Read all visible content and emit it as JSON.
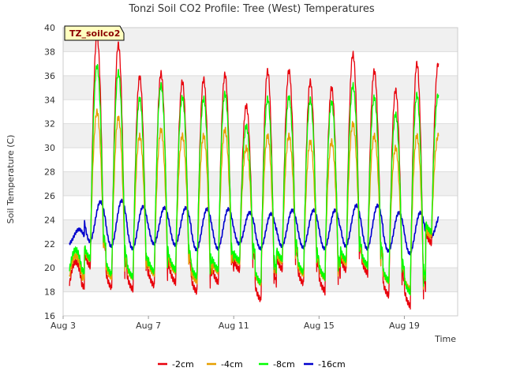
{
  "chart_data": {
    "type": "line",
    "title": "Tonzi Soil CO2 Profile: Tree (West) Temperatures",
    "xlabel": "Time",
    "ylabel": "Soil Temperature (C)",
    "badge": "TZ_soilco2",
    "ylim": [
      16,
      40
    ],
    "yticks": [
      16,
      18,
      20,
      22,
      24,
      26,
      28,
      30,
      32,
      34,
      36,
      38,
      40
    ],
    "xlim": [
      3,
      21.5
    ],
    "xticks": [
      {
        "value": 3,
        "label": "Aug 3"
      },
      {
        "value": 7,
        "label": "Aug 7"
      },
      {
        "value": 11,
        "label": "Aug 11"
      },
      {
        "value": 15,
        "label": "Aug 15"
      },
      {
        "value": 19,
        "label": "Aug 19"
      }
    ],
    "x_start": 3.3,
    "x_end": 20.6,
    "grid": true,
    "background_bands": true,
    "legend_position": "bottom",
    "days": [
      3,
      4,
      5,
      6,
      7,
      8,
      9,
      10,
      11,
      12,
      13,
      14,
      15,
      16,
      17,
      18,
      19,
      20
    ],
    "series": [
      {
        "name": "-2cm",
        "color": "#e8000b",
        "min": [
          18.2,
          19.8,
          18.0,
          17.9,
          18.2,
          18.5,
          17.7,
          18.5,
          19.6,
          17.0,
          19.6,
          18.4,
          17.8,
          19.5,
          19.3,
          17.4,
          16.5,
          21.8
        ],
        "max": [
          20.5,
          39.3,
          38.6,
          35.9,
          36.2,
          35.5,
          35.7,
          36.1,
          33.5,
          36.4,
          36.4,
          35.5,
          35.0,
          37.8,
          36.4,
          34.8,
          37.0,
          37.0
        ]
      },
      {
        "name": "-4cm",
        "color": "#e69f00",
        "min": [
          19.0,
          20.5,
          19.0,
          19.0,
          19.3,
          19.5,
          18.7,
          19.5,
          20.3,
          18.5,
          20.3,
          19.3,
          19.0,
          20.2,
          20.0,
          18.7,
          18.0,
          22.5
        ],
        "max": [
          21.0,
          33.0,
          32.5,
          31.0,
          31.5,
          31.0,
          31.0,
          31.5,
          30.0,
          31.0,
          31.0,
          30.5,
          30.5,
          32.0,
          31.0,
          30.0,
          31.0,
          31.0
        ]
      },
      {
        "name": "-8cm",
        "color": "#00ff00",
        "min": [
          19.5,
          20.5,
          19.2,
          19.0,
          19.4,
          19.6,
          19.0,
          19.6,
          20.4,
          18.5,
          20.5,
          19.4,
          19.0,
          20.4,
          20.0,
          18.7,
          17.7,
          22.8
        ],
        "max": [
          21.5,
          36.8,
          36.3,
          34.1,
          35.2,
          34.2,
          34.1,
          34.5,
          31.8,
          34.1,
          34.2,
          34.0,
          33.8,
          35.2,
          34.2,
          32.8,
          34.4,
          34.4
        ]
      },
      {
        "name": "-16cm",
        "color": "#0000cd",
        "min": [
          22.0,
          22.2,
          21.8,
          21.6,
          22.0,
          21.9,
          21.5,
          21.6,
          22.0,
          21.6,
          21.8,
          21.7,
          21.6,
          21.8,
          21.6,
          21.4,
          21.2,
          22.6
        ],
        "max": [
          23.2,
          25.5,
          25.6,
          25.1,
          25.0,
          25.0,
          24.9,
          24.9,
          24.6,
          24.5,
          24.8,
          24.8,
          24.8,
          25.2,
          25.2,
          24.6,
          24.6,
          24.6
        ]
      }
    ]
  }
}
